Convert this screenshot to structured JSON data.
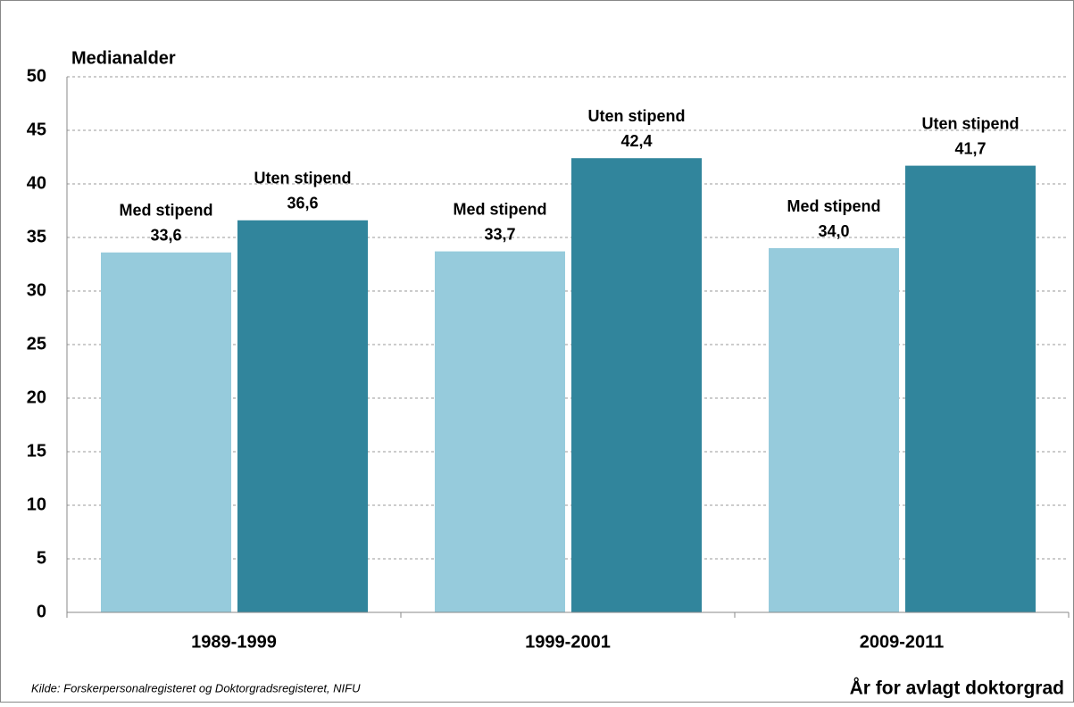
{
  "chart_data": {
    "type": "bar",
    "y_label": "Medianalder",
    "x_label": "År for avlagt doktorgrad",
    "source": "Kilde: Forskerpersonalregisteret  og Doktorgradsregisteret,  NIFU",
    "categories": [
      "1989-1999",
      "1999-2001",
      "2009-2011"
    ],
    "series": [
      {
        "name": "Med stipend",
        "color": "#96cbdc",
        "values": [
          33.6,
          33.7,
          34.0
        ],
        "value_labels": [
          "33,6",
          "33,7",
          "34,0"
        ]
      },
      {
        "name": "Uten stipend",
        "color": "#31859c",
        "values": [
          36.6,
          42.4,
          41.7
        ],
        "value_labels": [
          "36,6",
          "42,4",
          "41,7"
        ]
      }
    ],
    "ylim": [
      0,
      50
    ],
    "yticks": [
      0,
      5,
      10,
      15,
      20,
      25,
      30,
      35,
      40,
      45,
      50
    ],
    "grid": true
  }
}
